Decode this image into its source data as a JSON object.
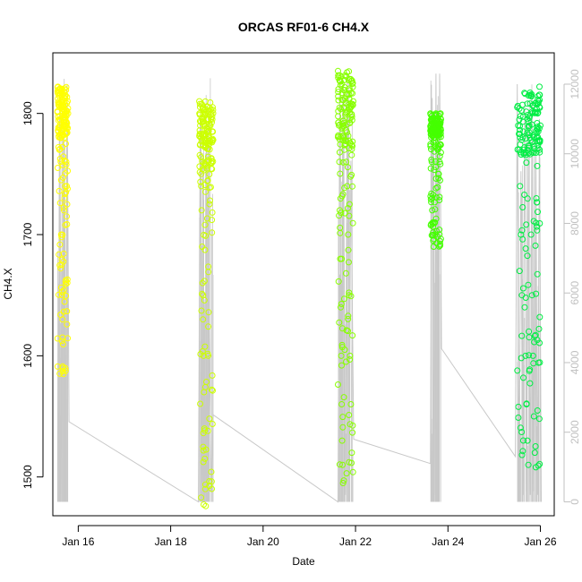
{
  "chart_data": {
    "type": "scatter",
    "title": "ORCAS RF01-6 CH4.X",
    "xlabel": "Date",
    "ylabel": "CH4.X",
    "x_unit": "days (January 2016)",
    "xlim": [
      15.45,
      26.3
    ],
    "ylim": [
      1468,
      1850
    ],
    "yticks": [
      1500,
      1600,
      1700,
      1800
    ],
    "xticks": [
      {
        "value": 16,
        "label": "Jan 16"
      },
      {
        "value": 18,
        "label": "Jan 18"
      },
      {
        "value": 20,
        "label": "Jan 20"
      },
      {
        "value": 22,
        "label": "Jan 22"
      },
      {
        "value": 24,
        "label": "Jan 24"
      },
      {
        "value": 26,
        "label": "Jan 26"
      }
    ],
    "right_axis": {
      "ylim": [
        -400,
        12900
      ],
      "ticks": [
        0,
        2000,
        4000,
        6000,
        8000,
        10000,
        12000
      ],
      "color": "#c0c0c0"
    },
    "grid": false,
    "series": [
      {
        "color": "#ffff00",
        "flight_start": 15.55,
        "flight_end": 15.78,
        "x": [
          15.56,
          15.58,
          15.6,
          15.61,
          15.62,
          15.63,
          15.64,
          15.65,
          15.66,
          15.67,
          15.68,
          15.69,
          15.7,
          15.71,
          15.72,
          15.73,
          15.74,
          15.75,
          15.76,
          15.77,
          15.78,
          15.57,
          15.59,
          15.63,
          15.66,
          15.72,
          15.75
        ],
        "y": [
          1822,
          1815,
          1795,
          1780,
          1760,
          1700,
          1675,
          1650,
          1615,
          1590,
          1585,
          1720,
          1780,
          1800,
          1790,
          1775,
          1760,
          1740,
          1725,
          1810,
          1800,
          1785,
          1770,
          1745,
          1630,
          1795,
          1715
        ]
      },
      {
        "color": "#ccff00",
        "flight_start": 18.62,
        "flight_end": 18.92,
        "x": [
          18.62,
          18.63,
          18.64,
          18.65,
          18.66,
          18.67,
          18.68,
          18.69,
          18.7,
          18.71,
          18.72,
          18.73,
          18.74,
          18.75,
          18.76,
          18.78,
          18.8,
          18.82,
          18.84,
          18.86,
          18.88,
          18.9,
          18.91,
          18.92,
          18.66,
          18.7
        ],
        "y": [
          1810,
          1800,
          1790,
          1780,
          1750,
          1720,
          1690,
          1660,
          1630,
          1600,
          1570,
          1540,
          1515,
          1490,
          1476,
          1795,
          1785,
          1780,
          1775,
          1790,
          1800,
          1795,
          1785,
          1778,
          1740,
          1650
        ]
      },
      {
        "color": "#88ff00",
        "flight_start": 21.62,
        "flight_end": 21.95,
        "x": [
          21.62,
          21.63,
          21.64,
          21.65,
          21.66,
          21.67,
          21.68,
          21.69,
          21.7,
          21.71,
          21.72,
          21.73,
          21.74,
          21.75,
          21.76,
          21.78,
          21.8,
          21.82,
          21.84,
          21.86,
          21.88,
          21.9,
          21.92,
          21.94,
          21.95,
          21.7
        ],
        "y": [
          1835,
          1820,
          1790,
          1760,
          1720,
          1680,
          1640,
          1600,
          1560,
          1530,
          1510,
          1495,
          1790,
          1780,
          1770,
          1775,
          1760,
          1740,
          1700,
          1650,
          1600,
          1560,
          1520,
          1825,
          1810,
          1680
        ]
      },
      {
        "color": "#44ff00",
        "flight_start": 23.62,
        "flight_end": 23.85,
        "x": [
          23.62,
          23.63,
          23.64,
          23.65,
          23.66,
          23.67,
          23.68,
          23.69,
          23.7,
          23.72,
          23.74,
          23.76,
          23.78,
          23.8,
          23.82,
          23.84,
          23.85,
          23.66
        ],
        "y": [
          1800,
          1790,
          1780,
          1760,
          1730,
          1710,
          1695,
          1690,
          1780,
          1795,
          1800,
          1790,
          1770,
          1750,
          1760,
          1800,
          1795,
          1720
        ]
      },
      {
        "color": "#00ee44",
        "flight_start": 25.5,
        "flight_end": 26.0,
        "x": [
          25.5,
          25.52,
          25.54,
          25.56,
          25.58,
          25.6,
          25.62,
          25.64,
          25.66,
          25.68,
          25.7,
          25.72,
          25.74,
          25.76,
          25.78,
          25.8,
          25.82,
          25.84,
          25.86,
          25.88,
          25.9,
          25.92,
          25.94,
          25.96,
          25.98,
          26.0,
          25.55,
          25.75
        ],
        "y": [
          1805,
          1790,
          1770,
          1740,
          1700,
          1650,
          1780,
          1770,
          1640,
          1600,
          1560,
          1530,
          1510,
          1790,
          1780,
          1700,
          1650,
          1600,
          1550,
          1520,
          1508,
          1780,
          1800,
          1810,
          1822,
          1790,
          1670,
          1620
        ]
      }
    ],
    "overlay_line": {
      "color": "#c8c8c8",
      "axis": "right",
      "x": [
        15.56,
        15.6,
        15.64,
        15.68,
        15.72,
        15.76,
        15.8,
        18.6,
        18.64,
        18.68,
        18.72,
        18.76,
        18.82,
        18.88,
        18.92,
        21.62,
        21.66,
        21.7,
        21.74,
        21.78,
        21.82,
        21.86,
        21.9,
        21.96,
        23.62,
        23.66,
        23.7,
        23.74,
        23.78,
        23.82,
        23.86,
        25.46,
        25.5,
        25.54,
        25.58,
        25.62,
        25.66,
        25.7,
        25.74,
        25.78,
        25.82,
        25.86,
        25.9,
        25.94,
        25.98,
        26.02
      ],
      "y": [
        0,
        11800,
        200,
        9000,
        300,
        12000,
        2300,
        0,
        11000,
        500,
        5700,
        200,
        6000,
        300,
        2500,
        0,
        12200,
        300,
        10500,
        200,
        12300,
        1000,
        9800,
        1800,
        1100,
        11600,
        200,
        12300,
        300,
        12300,
        4400,
        1300,
        12000,
        400,
        9500,
        200,
        11500,
        300,
        10000,
        200,
        11800,
        300,
        10500,
        200,
        11000,
        0
      ]
    }
  }
}
